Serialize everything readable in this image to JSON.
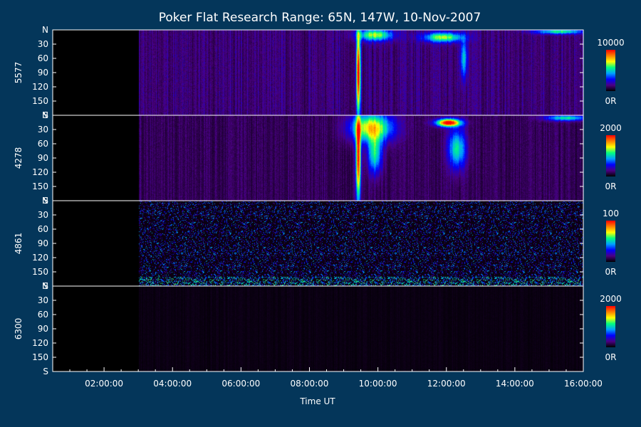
{
  "chart_data": {
    "type": "heatmap",
    "title": "Poker Flat Research Range: 65N, 147W, 10-Nov-2007",
    "xlabel": "Time UT",
    "x_range_hours": [
      0.5,
      16.0
    ],
    "x_ticks": [
      {
        "hour": 2,
        "label": "02:00:00"
      },
      {
        "hour": 4,
        "label": "04:00:00"
      },
      {
        "hour": 6,
        "label": "06:00:00"
      },
      {
        "hour": 8,
        "label": "08:00:00"
      },
      {
        "hour": 10,
        "label": "10:00:00"
      },
      {
        "hour": 12,
        "label": "12:00:00"
      },
      {
        "hour": 14,
        "label": "14:00:00"
      },
      {
        "hour": 16,
        "label": "16:00:00"
      }
    ],
    "y_range_deg": [
      0,
      180
    ],
    "y_ticks": [
      {
        "deg": 0,
        "label": "N"
      },
      {
        "deg": 30,
        "label": "30"
      },
      {
        "deg": 60,
        "label": "60"
      },
      {
        "deg": 90,
        "label": "90"
      },
      {
        "deg": 120,
        "label": "120"
      },
      {
        "deg": 150,
        "label": "150"
      },
      {
        "deg": 180,
        "label": "S"
      }
    ],
    "colormap": [
      "#000000",
      "#4b0082",
      "#0000ff",
      "#00a0ff",
      "#00ff80",
      "#ffff00",
      "#ff8000",
      "#ff0000"
    ],
    "panels": [
      {
        "label": "5577",
        "cb_max": "10000",
        "cb_min": "0R",
        "background": 0.13,
        "start_hour": 3.0,
        "features": [
          {
            "t": 9.42,
            "t_w": 0.06,
            "deg": 90,
            "deg_w": 90,
            "level": 0.95
          },
          {
            "t": 9.9,
            "t_w": 0.5,
            "deg": 10,
            "deg_w": 12,
            "level": 0.55
          },
          {
            "t": 11.9,
            "t_w": 0.55,
            "deg": 15,
            "deg_w": 10,
            "level": 0.55
          },
          {
            "t": 12.5,
            "t_w": 0.1,
            "deg": 60,
            "deg_w": 40,
            "level": 0.35
          },
          {
            "t": 15.3,
            "t_w": 0.7,
            "deg": 3,
            "deg_w": 5,
            "level": 0.45
          }
        ]
      },
      {
        "label": "4278",
        "cb_max": "2000",
        "cb_min": "0R",
        "background": 0.1,
        "start_hour": 3.0,
        "features": [
          {
            "t": 9.42,
            "t_w": 0.07,
            "deg": 90,
            "deg_w": 90,
            "level": 0.9
          },
          {
            "t": 9.8,
            "t_w": 0.6,
            "deg": 25,
            "deg_w": 30,
            "level": 0.65
          },
          {
            "t": 9.9,
            "t_w": 0.2,
            "deg": 80,
            "deg_w": 40,
            "level": 0.45
          },
          {
            "t": 12.05,
            "t_w": 0.35,
            "deg": 15,
            "deg_w": 8,
            "level": 0.95
          },
          {
            "t": 12.3,
            "t_w": 0.25,
            "deg": 70,
            "deg_w": 40,
            "level": 0.45
          },
          {
            "t": 15.5,
            "t_w": 0.6,
            "deg": 5,
            "deg_w": 6,
            "level": 0.45
          }
        ]
      },
      {
        "label": "4861",
        "cb_max": "100",
        "cb_min": "0R",
        "background": 0.12,
        "start_hour": 3.0,
        "speckle": true,
        "features": []
      },
      {
        "label": "6300",
        "cb_max": "2000",
        "cb_min": "0R",
        "background": 0.02,
        "start_hour": 3.0,
        "features": []
      }
    ]
  }
}
